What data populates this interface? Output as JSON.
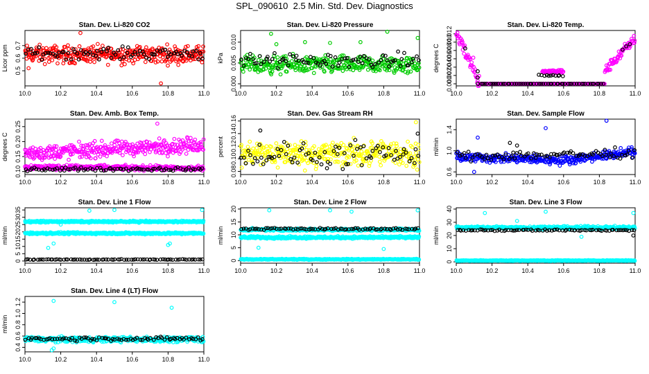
{
  "page": {
    "title": "SPL_090610  2.5 Min. Std. Dev. Diagnostics"
  },
  "colors": {
    "black": "#000000",
    "red": "#ff0000",
    "green": "#00cc00",
    "magenta": "#ff00ff",
    "yellow": "#ffff00",
    "blue": "#0000ff",
    "cyan": "#00ffff"
  },
  "chart_data": [
    {
      "type": "scatter",
      "title": "Stan. Dev. Li-820 CO2",
      "ylabel": "Licor ppm",
      "xlim": [
        10.0,
        11.0
      ],
      "ylim": [
        0.38,
        0.82
      ],
      "xticks": [
        10.0,
        10.2,
        10.4,
        10.6,
        10.8,
        11.0
      ],
      "xtick_labels": [
        "10.0",
        "10.2",
        "10.4",
        "10.6",
        "10.8",
        "11.0"
      ],
      "yticks": [
        0.5,
        0.6,
        0.7
      ],
      "ytick_labels": [
        "0.5",
        "0.6",
        "0.7"
      ],
      "series": [
        {
          "color": "#ff0000",
          "bands": [
            [
              10.0,
              11.0,
              0.63,
              0.06
            ]
          ],
          "outliers": [
            [
              10.76,
              0.4
            ],
            [
              10.31,
              0.8
            ],
            [
              10.02,
              0.52
            ]
          ]
        },
        {
          "color": "#000000",
          "bands": [
            [
              10.0,
              11.0,
              0.64,
              0.04
            ]
          ],
          "outliers": []
        }
      ]
    },
    {
      "type": "scatter",
      "title": "Stan. Dev. Li-820 Pressure",
      "ylabel": "kPa",
      "xlim": [
        10.0,
        11.0
      ],
      "ylim": [
        -0.0005,
        0.0128
      ],
      "xticks": [
        10.0,
        10.2,
        10.4,
        10.6,
        10.8,
        11.0
      ],
      "xtick_labels": [
        "10.0",
        "10.2",
        "10.4",
        "10.6",
        "10.8",
        "11.0"
      ],
      "yticks": [
        0.0,
        0.005,
        0.01
      ],
      "ytick_labels": [
        "0.000",
        "0.005",
        "0.010"
      ],
      "series": [
        {
          "color": "#00cc00",
          "bands": [
            [
              10.0,
              11.0,
              0.0045,
              0.0018
            ]
          ],
          "outliers": [
            [
              10.17,
              0.012
            ],
            [
              10.82,
              0.0125
            ],
            [
              10.99,
              0.011
            ],
            [
              10.36,
              0.01
            ],
            [
              10.5,
              0.0098
            ],
            [
              10.67,
              0.01
            ],
            [
              10.2,
              0.0095
            ]
          ]
        },
        {
          "color": "#000000",
          "bands": [
            [
              10.0,
              11.0,
              0.0055,
              0.0015
            ]
          ],
          "outliers": []
        }
      ]
    },
    {
      "type": "scatter",
      "title": "Stan. Dev. Li-820 Temp.",
      "ylabel": "degrees C",
      "xlim": [
        10.0,
        11.0
      ],
      "ylim": [
        -0.0005,
        0.0128
      ],
      "xticks": [
        10.0,
        10.2,
        10.4,
        10.6,
        10.8,
        11.0
      ],
      "xtick_labels": [
        "10.0",
        "10.2",
        "10.4",
        "10.6",
        "10.8",
        "11.0"
      ],
      "yticks": [
        0.0,
        0.002,
        0.004,
        0.006,
        0.008,
        0.01,
        0.012
      ],
      "ytick_labels": [
        "0.000",
        "0.002",
        "0.004",
        "0.006",
        "0.008",
        "0.010",
        "0.012"
      ],
      "series": [
        {
          "color": "#ff00ff",
          "bands": [
            [
              10.0,
              10.13,
              0.0125,
              0.0,
              0.002
            ],
            [
              10.13,
              10.83,
              0.0,
              0.0,
              0.0
            ],
            [
              10.83,
              11.0,
              0.003,
              0.011,
              0.001
            ],
            [
              10.48,
              10.6,
              0.003,
              0.003,
              0.0004
            ]
          ],
          "outliers": []
        },
        {
          "color": "#000000",
          "bands": [
            [
              10.12,
              10.83,
              0.0,
              0.0,
              0.0
            ],
            [
              10.46,
              10.6,
              0.002,
              0.002,
              0.0003
            ]
          ],
          "outliers": [
            [
              10.12,
              0.003
            ],
            [
              10.12,
              0.0015
            ],
            [
              10.93,
              0.0082
            ],
            [
              10.95,
              0.009
            ],
            [
              10.97,
              0.0095
            ],
            [
              10.05,
              0.0085
            ]
          ]
        }
      ]
    },
    {
      "type": "scatter",
      "title": "Stan. Dev. Amb. Box Temp.",
      "ylabel": "degrees C",
      "xlim": [
        10.0,
        11.0
      ],
      "ylim": [
        0.09,
        0.275
      ],
      "xticks": [
        10.0,
        10.2,
        10.4,
        10.6,
        10.8,
        11.0
      ],
      "xtick_labels": [
        "10.0",
        "10.2",
        "10.4",
        "10.6",
        "10.8",
        "11.0"
      ],
      "yticks": [
        0.1,
        0.15,
        0.2,
        0.25
      ],
      "ytick_labels": [
        "0.10",
        "0.15",
        "0.20",
        "0.25"
      ],
      "series": [
        {
          "color": "#ff00ff",
          "bands": [
            [
              10.0,
              11.0,
              0.16,
              0.19,
              0.022
            ],
            [
              10.0,
              11.0,
              0.115,
              0.11,
              0.007
            ]
          ],
          "outliers": [
            [
              10.74,
              0.26
            ]
          ]
        },
        {
          "color": "#000000",
          "bands": [
            [
              10.0,
              11.0,
              0.108,
              0.108,
              0.005
            ]
          ],
          "outliers": []
        }
      ]
    },
    {
      "type": "scatter",
      "title": "Stan. Dev. Gas Stream RH",
      "ylabel": "percent",
      "xlim": [
        10.0,
        11.0
      ],
      "ylim": [
        0.075,
        0.163
      ],
      "xticks": [
        10.0,
        10.2,
        10.4,
        10.6,
        10.8,
        11.0
      ],
      "xtick_labels": [
        "10.0",
        "10.2",
        "10.4",
        "10.6",
        "10.8",
        "11.0"
      ],
      "yticks": [
        0.08,
        0.1,
        0.12,
        0.14,
        0.16
      ],
      "ytick_labels": [
        "0.08",
        "0.10",
        "0.12",
        "0.14",
        "0.16"
      ],
      "series": [
        {
          "color": "#ffff00",
          "bands": [
            [
              10.0,
              11.0,
              0.108,
              0.018
            ]
          ],
          "outliers": [
            [
              10.98,
              0.158
            ]
          ]
        },
        {
          "color": "#000000",
          "bands": [
            [
              10.0,
              11.0,
              0.105,
              0.018
            ]
          ],
          "outliers": [
            [
              10.11,
              0.145
            ],
            [
              10.99,
              0.14
            ]
          ]
        }
      ]
    },
    {
      "type": "scatter",
      "title": "Stan. Dev. Sample Flow",
      "ylabel": "ml/min",
      "xlim": [
        10.0,
        11.0
      ],
      "ylim": [
        0.55,
        1.6
      ],
      "xticks": [
        10.0,
        10.2,
        10.4,
        10.6,
        10.8,
        11.0
      ],
      "xtick_labels": [
        "10.0",
        "10.2",
        "10.4",
        "10.6",
        "10.8",
        "11.0"
      ],
      "yticks": [
        0.6,
        1.0,
        1.4
      ],
      "ytick_labels": [
        "0.6",
        "1.0",
        "1.4"
      ],
      "series": [
        {
          "color": "#0000ff",
          "bands": [
            [
              10.0,
              10.6,
              0.88,
              0.82,
              0.07
            ],
            [
              10.6,
              11.0,
              0.82,
              0.98,
              0.07
            ]
          ],
          "outliers": [
            [
              10.5,
              1.43
            ],
            [
              10.84,
              1.57
            ],
            [
              10.12,
              1.25
            ],
            [
              10.1,
              0.6
            ]
          ]
        },
        {
          "color": "#000000",
          "bands": [
            [
              10.0,
              11.0,
              0.9,
              0.95,
              0.08
            ]
          ],
          "outliers": [
            [
              10.3,
              1.15
            ],
            [
              10.34,
              1.1
            ]
          ]
        }
      ]
    },
    {
      "type": "scatter",
      "title": "Stan. Dev. Line 1 Flow",
      "ylabel": "ml/min",
      "xlim": [
        10.0,
        11.0
      ],
      "ylim": [
        -1.5,
        36.5
      ],
      "xticks": [
        10.0,
        10.2,
        10.4,
        10.6,
        10.8,
        11.0
      ],
      "xtick_labels": [
        "10.0",
        "10.2",
        "10.4",
        "10.6",
        "10.8",
        "11.0"
      ],
      "yticks": [
        0,
        5,
        10,
        15,
        20,
        25,
        30,
        35
      ],
      "ytick_labels": [
        "0",
        "5",
        "10",
        "15",
        "20",
        "25",
        "30",
        "35"
      ],
      "series": [
        {
          "color": "#00ffff",
          "bands": [
            [
              10.0,
              11.0,
              27.0,
              27.0,
              0.5
            ],
            [
              10.0,
              11.0,
              19.0,
              19.0,
              0.6
            ]
          ],
          "outliers": [
            [
              10.16,
              12.0
            ],
            [
              10.13,
              9.0
            ],
            [
              10.5,
              35.0
            ],
            [
              10.99,
              35.0
            ],
            [
              10.36,
              34.5
            ],
            [
              10.8,
              11.0
            ],
            [
              10.81,
              12.0
            ],
            [
              10.2,
              25.0
            ]
          ]
        },
        {
          "color": "#000000",
          "bands": [
            [
              10.0,
              11.0,
              1.0,
              1.0,
              0.2
            ]
          ],
          "outliers": []
        }
      ]
    },
    {
      "type": "scatter",
      "title": "Stan. Dev. Line 2 Flow",
      "ylabel": "ml/min",
      "xlim": [
        10.0,
        11.0
      ],
      "ylim": [
        -1.0,
        20.5
      ],
      "xticks": [
        10.0,
        10.2,
        10.4,
        10.6,
        10.8,
        11.0
      ],
      "xtick_labels": [
        "10.0",
        "10.2",
        "10.4",
        "10.6",
        "10.8",
        "11.0"
      ],
      "yticks": [
        0,
        5,
        10,
        15,
        20
      ],
      "ytick_labels": [
        "0",
        "5",
        "10",
        "15",
        "20"
      ],
      "series": [
        {
          "color": "#00ffff",
          "bands": [
            [
              10.0,
              11.0,
              12.0,
              12.0,
              0.4
            ],
            [
              10.0,
              11.0,
              9.0,
              9.0,
              0.4
            ],
            [
              10.0,
              11.0,
              0.5,
              0.5,
              0.15
            ]
          ],
          "outliers": [
            [
              10.16,
              19.5
            ],
            [
              10.5,
              19.5
            ],
            [
              10.99,
              19.5
            ],
            [
              10.1,
              5.0
            ],
            [
              10.8,
              4.5
            ],
            [
              10.62,
              19.0
            ]
          ]
        },
        {
          "color": "#000000",
          "bands": [
            [
              10.0,
              11.0,
              12.3,
              12.3,
              0.3
            ]
          ],
          "outliers": []
        }
      ]
    },
    {
      "type": "scatter",
      "title": "Stan. Dev. Line 3 Flow",
      "ylabel": "ml/min",
      "xlim": [
        10.0,
        11.0
      ],
      "ylim": [
        -1.0,
        41.0
      ],
      "xticks": [
        10.0,
        10.2,
        10.4,
        10.6,
        10.8,
        11.0
      ],
      "xtick_labels": [
        "10.0",
        "10.2",
        "10.4",
        "10.6",
        "10.8",
        "11.0"
      ],
      "yticks": [
        0,
        10,
        20,
        30,
        40
      ],
      "ytick_labels": [
        "0",
        "10",
        "20",
        "30",
        "40"
      ],
      "series": [
        {
          "color": "#00ffff",
          "bands": [
            [
              10.0,
              11.0,
              26.0,
              26.0,
              0.9
            ],
            [
              10.0,
              11.0,
              1.0,
              1.0,
              0.25
            ]
          ],
          "outliers": [
            [
              10.16,
              37.0
            ],
            [
              10.5,
              38.0
            ],
            [
              10.99,
              37.0
            ],
            [
              10.34,
              31.0
            ],
            [
              10.7,
              19.0
            ]
          ]
        },
        {
          "color": "#000000",
          "bands": [
            [
              10.0,
              11.0,
              24.0,
              24.0,
              0.5
            ]
          ],
          "outliers": [
            [
              10.99,
              20.0
            ]
          ]
        }
      ]
    },
    {
      "type": "scatter",
      "title": "Stan. Dev. Line 4 (LT) Flow",
      "ylabel": "ml/min",
      "xlim": [
        10.0,
        11.0
      ],
      "ylim": [
        0.32,
        1.3
      ],
      "xticks": [
        10.0,
        10.2,
        10.4,
        10.6,
        10.8,
        11.0
      ],
      "xtick_labels": [
        "10.0",
        "10.2",
        "10.4",
        "10.6",
        "10.8",
        "11.0"
      ],
      "yticks": [
        0.4,
        0.6,
        0.8,
        1.0,
        1.2
      ],
      "ytick_labels": [
        "0.4",
        "0.6",
        "0.8",
        "1.0",
        "1.2"
      ],
      "series": [
        {
          "color": "#00ffff",
          "bands": [
            [
              10.0,
              11.0,
              0.54,
              0.54,
              0.04
            ]
          ],
          "outliers": [
            [
              10.16,
              1.22
            ],
            [
              10.5,
              1.2
            ],
            [
              10.82,
              1.1
            ],
            [
              10.15,
              0.35
            ],
            [
              10.16,
              0.38
            ]
          ]
        },
        {
          "color": "#000000",
          "bands": [
            [
              10.0,
              11.0,
              0.55,
              0.55,
              0.03
            ]
          ],
          "outliers": []
        }
      ]
    }
  ]
}
